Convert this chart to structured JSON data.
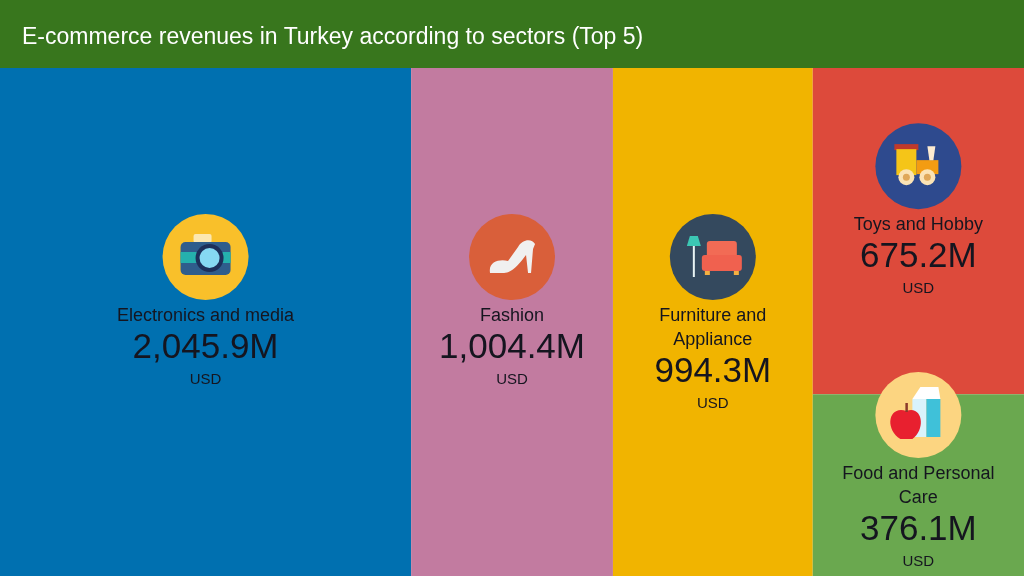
{
  "chart_data": {
    "type": "other",
    "title": "E-commerce revenues in Turkey according to sectors (Top 5)",
    "categories": [
      "Electronics and media",
      "Fashion",
      "Furniture and Appliance",
      "Toys and Hobby",
      "Food and Personal Care"
    ],
    "values": [
      2045.9,
      1004.4,
      994.3,
      675.2,
      376.1
    ],
    "value_labels": [
      "2,045.9M USD",
      "1,004.4M USD",
      "994.3M USD",
      "675.2M USD",
      "376.1M USD"
    ],
    "colors": [
      "#0070b0",
      "#c27ba0",
      "#f1b400",
      "#dd4a3b",
      "#6aa84f"
    ]
  }
}
